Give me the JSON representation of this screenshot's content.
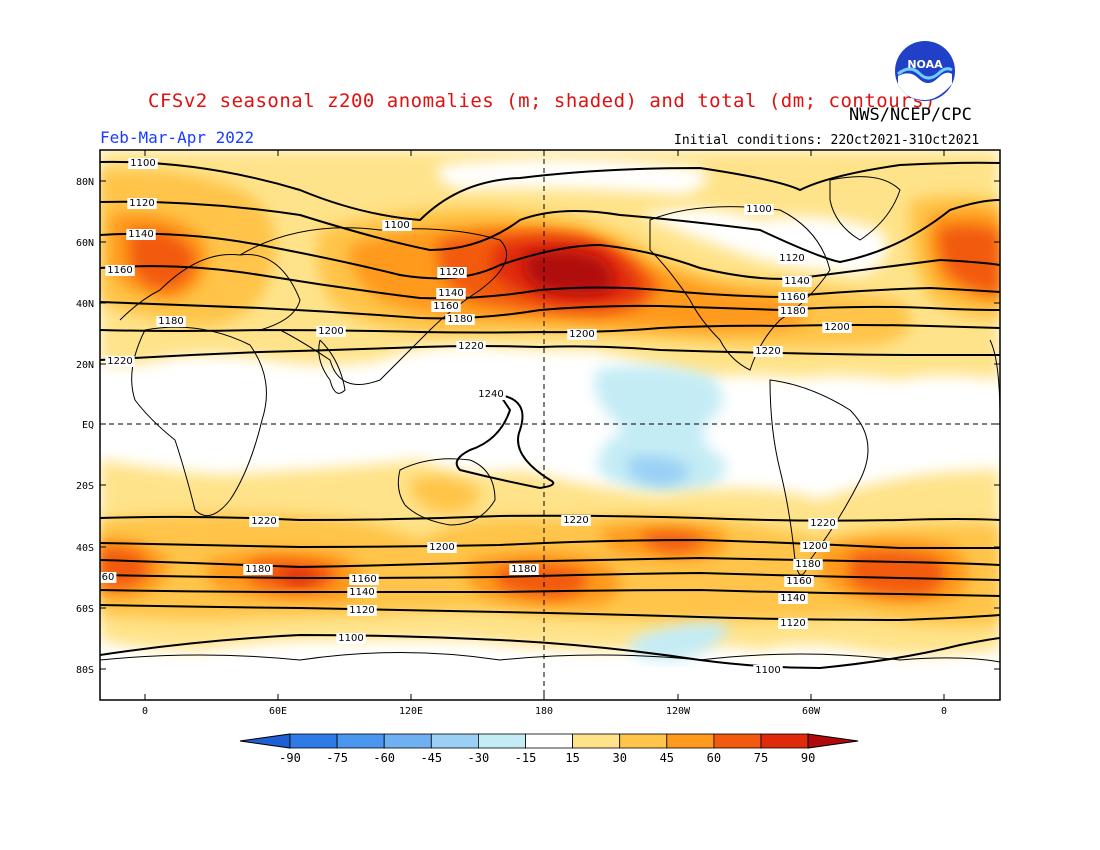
{
  "header": {
    "title": "CFSv2 seasonal z200 anomalies (m; shaded) and total (dm; contours)",
    "agency": "NWS/NCEP/CPC",
    "season": "Feb-Mar-Apr 2022",
    "initial_conditions": "Initial conditions: 22Oct2021-31Oct2021",
    "logo_text": "NOAA"
  },
  "axes": {
    "lat_labels": [
      "80N",
      "60N",
      "40N",
      "20N",
      "EQ",
      "20S",
      "40S",
      "60S",
      "80S"
    ],
    "lon_labels": [
      "0",
      "60E",
      "120E",
      "180",
      "120W",
      "60W",
      "0"
    ]
  },
  "contours": {
    "labels": [
      {
        "text": "1100"
      },
      {
        "text": "1120"
      },
      {
        "text": "1140"
      },
      {
        "text": "1160"
      },
      {
        "text": "1180"
      },
      {
        "text": "1200"
      },
      {
        "text": "1220"
      },
      {
        "text": "1100"
      },
      {
        "text": "1120"
      },
      {
        "text": "1140"
      },
      {
        "text": "1160"
      },
      {
        "text": "1180"
      },
      {
        "text": "1200"
      },
      {
        "text": "1220"
      },
      {
        "text": "1100"
      },
      {
        "text": "1120"
      },
      {
        "text": "1140"
      },
      {
        "text": "1160"
      },
      {
        "text": "1180"
      },
      {
        "text": "1200"
      },
      {
        "text": "1220"
      },
      {
        "text": "1240"
      },
      {
        "text": "1220"
      },
      {
        "text": "1220"
      },
      {
        "text": "1220"
      },
      {
        "text": "1200"
      },
      {
        "text": "1200"
      },
      {
        "text": "1180"
      },
      {
        "text": "1180"
      },
      {
        "text": "1160"
      },
      {
        "text": "1160"
      },
      {
        "text": "1140"
      },
      {
        "text": "1140"
      },
      {
        "text": "1120"
      },
      {
        "text": "1120"
      },
      {
        "text": "1100"
      },
      {
        "text": "1100"
      },
      {
        "text": "1180"
      },
      {
        "text": "60"
      }
    ]
  },
  "colorbar": {
    "labels": [
      "-90",
      "-75",
      "-60",
      "-45",
      "-30",
      "-15",
      "15",
      "30",
      "45",
      "60",
      "75",
      "90"
    ],
    "colors": [
      "#1e5fd6",
      "#2f7ae6",
      "#4b96ee",
      "#6fb0f2",
      "#9ad0f5",
      "#c4ecf5",
      "#ffffff",
      "#ffe38a",
      "#ffc44a",
      "#ff9a1f",
      "#f25a10",
      "#e02a0c",
      "#b00a0a"
    ]
  }
}
